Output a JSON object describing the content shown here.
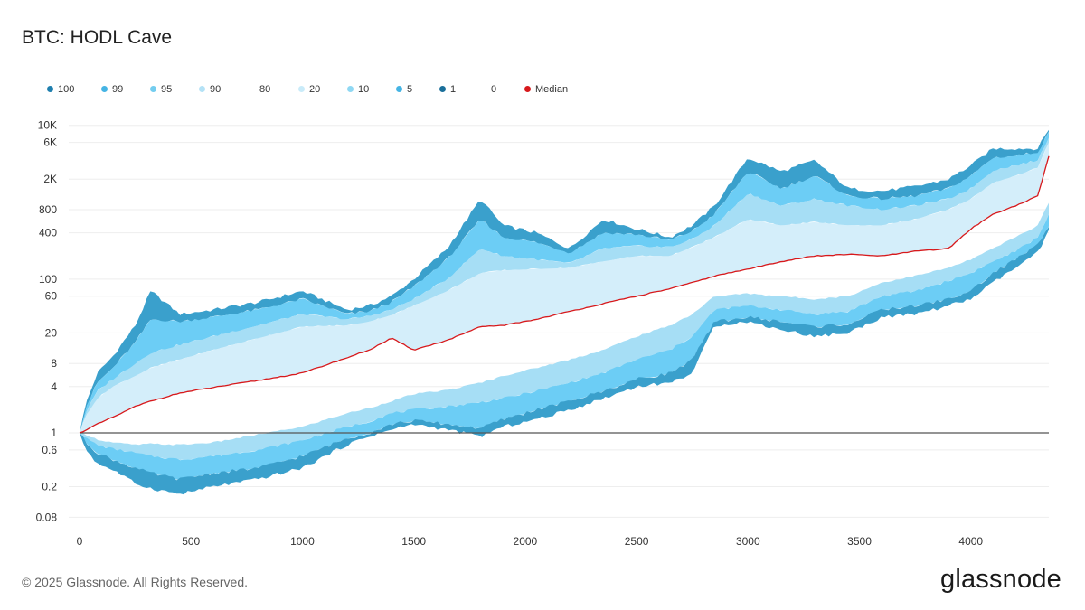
{
  "title": "BTC: HODL Cave",
  "footer": "© 2025 Glassnode. All Rights Reserved.",
  "brand": "glassnode",
  "legend": [
    {
      "label": "100",
      "color": "#1f7fae"
    },
    {
      "label": "99",
      "color": "#45b4e4"
    },
    {
      "label": "95",
      "color": "#74cdef"
    },
    {
      "label": "90",
      "color": "#b4e2f6"
    },
    {
      "label": "80",
      "color": "#ffffff"
    },
    {
      "label": "20",
      "color": "#c9ebf9"
    },
    {
      "label": "10",
      "color": "#8fd8f3"
    },
    {
      "label": "5",
      "color": "#45b4e4"
    },
    {
      "label": "1",
      "color": "#1a6f9a"
    },
    {
      "label": "0",
      "color": "#ffffff"
    },
    {
      "label": "Median",
      "color": "#d7191c"
    }
  ],
  "colors": {
    "band_outer": "#3aa0cc",
    "band_99_95": "#6ccdf5",
    "band_95_90": "#a6def5",
    "band_90_80": "#d4eefa",
    "median": "#d7191c",
    "baseline": "#555555"
  },
  "chart_data": {
    "type": "area",
    "title": "BTC: HODL Cave",
    "xlabel": "",
    "ylabel": "",
    "y_scale": "log",
    "xlim": [
      0,
      4350
    ],
    "ylim": [
      0.065,
      12000
    ],
    "x_ticks": [
      0,
      500,
      1000,
      1500,
      2000,
      2500,
      3000,
      3500,
      4000
    ],
    "y_ticks": [
      {
        "value": 10000,
        "label": "10K"
      },
      {
        "value": 6000,
        "label": "6K"
      },
      {
        "value": 2000,
        "label": "2K"
      },
      {
        "value": 800,
        "label": "800"
      },
      {
        "value": 400,
        "label": "400"
      },
      {
        "value": 100,
        "label": "100"
      },
      {
        "value": 60,
        "label": "60"
      },
      {
        "value": 20,
        "label": "20"
      },
      {
        "value": 8,
        "label": "8"
      },
      {
        "value": 4,
        "label": "4"
      },
      {
        "value": 1,
        "label": "1"
      },
      {
        "value": 0.6,
        "label": "0.6"
      },
      {
        "value": 0.2,
        "label": "0.2"
      },
      {
        "value": 0.08,
        "label": "0.08"
      }
    ],
    "grid": true,
    "baseline": 1,
    "x": [
      0,
      30,
      80,
      150,
      250,
      320,
      450,
      600,
      800,
      1000,
      1200,
      1300,
      1400,
      1500,
      1650,
      1800,
      1900,
      2050,
      2200,
      2350,
      2500,
      2650,
      2750,
      2850,
      3000,
      3150,
      3300,
      3450,
      3600,
      3750,
      3900,
      4000,
      4100,
      4200,
      4300,
      4350
    ],
    "series": [
      {
        "name": "100",
        "values": [
          1,
          2.5,
          6,
          10,
          25,
          70,
          35,
          40,
          50,
          70,
          40,
          45,
          60,
          100,
          250,
          1100,
          500,
          400,
          250,
          600,
          450,
          350,
          500,
          900,
          3800,
          2500,
          3500,
          1500,
          1400,
          1600,
          2000,
          3000,
          5000,
          5000,
          5000,
          9000
        ]
      },
      {
        "name": "99",
        "values": [
          1,
          2.2,
          4.5,
          7,
          15,
          30,
          28,
          32,
          40,
          55,
          35,
          38,
          50,
          80,
          180,
          600,
          350,
          300,
          220,
          400,
          380,
          320,
          420,
          700,
          2500,
          1500,
          2200,
          1200,
          1100,
          1200,
          1500,
          2200,
          3800,
          4000,
          4500,
          8000
        ]
      },
      {
        "name": "95",
        "values": [
          1,
          1.9,
          3.5,
          5,
          8,
          11,
          14,
          18,
          25,
          35,
          30,
          33,
          40,
          55,
          100,
          250,
          200,
          180,
          160,
          250,
          270,
          260,
          330,
          500,
          1300,
          900,
          1100,
          900,
          800,
          900,
          1100,
          1500,
          2600,
          3000,
          3500,
          7000
        ]
      },
      {
        "name": "90",
        "values": [
          1,
          1.7,
          2.8,
          4,
          5.5,
          7,
          9,
          12,
          17,
          24,
          25,
          28,
          34,
          45,
          70,
          120,
          130,
          135,
          140,
          170,
          200,
          200,
          260,
          350,
          600,
          500,
          550,
          500,
          500,
          600,
          800,
          1100,
          1800,
          2200,
          2800,
          6000
        ]
      },
      {
        "name": "Median",
        "values": [
          1,
          1.1,
          1.3,
          1.6,
          2.2,
          2.6,
          3.3,
          3.9,
          4.8,
          6,
          9.5,
          12,
          17,
          12,
          16,
          24,
          25,
          30,
          38,
          48,
          60,
          75,
          90,
          110,
          135,
          170,
          200,
          210,
          200,
          230,
          250,
          450,
          700,
          900,
          1200,
          4000
        ]
      },
      {
        "name": "10",
        "values": [
          1,
          0.95,
          0.82,
          0.75,
          0.7,
          0.72,
          0.7,
          0.75,
          0.95,
          1.2,
          1.8,
          2.1,
          2.6,
          3.2,
          3.6,
          4.5,
          5.5,
          7,
          9,
          12,
          18,
          25,
          35,
          60,
          65,
          60,
          55,
          60,
          90,
          110,
          140,
          180,
          250,
          350,
          500,
          1000
        ]
      },
      {
        "name": "5",
        "values": [
          1,
          0.85,
          0.7,
          0.62,
          0.55,
          0.5,
          0.45,
          0.5,
          0.6,
          0.8,
          1.2,
          1.4,
          1.8,
          2,
          2.2,
          2.5,
          2.8,
          3.5,
          4.5,
          6,
          9,
          12,
          18,
          40,
          45,
          40,
          35,
          38,
          60,
          70,
          95,
          120,
          170,
          230,
          350,
          700
        ]
      },
      {
        "name": "1",
        "values": [
          1,
          0.75,
          0.55,
          0.45,
          0.35,
          0.3,
          0.25,
          0.3,
          0.35,
          0.5,
          0.85,
          1,
          1.3,
          1.45,
          1.3,
          1.15,
          1.5,
          2,
          2.6,
          3.5,
          5,
          6,
          9,
          28,
          32,
          28,
          24,
          26,
          40,
          45,
          55,
          70,
          120,
          180,
          280,
          500
        ]
      },
      {
        "name": "0",
        "values": [
          1,
          0.6,
          0.4,
          0.33,
          0.22,
          0.19,
          0.16,
          0.2,
          0.25,
          0.35,
          0.7,
          0.9,
          1.1,
          1.3,
          1.1,
          0.9,
          1.2,
          1.5,
          2,
          2.8,
          4,
          4.5,
          6,
          25,
          28,
          22,
          18,
          20,
          32,
          35,
          45,
          55,
          90,
          140,
          220,
          420
        ]
      }
    ]
  }
}
